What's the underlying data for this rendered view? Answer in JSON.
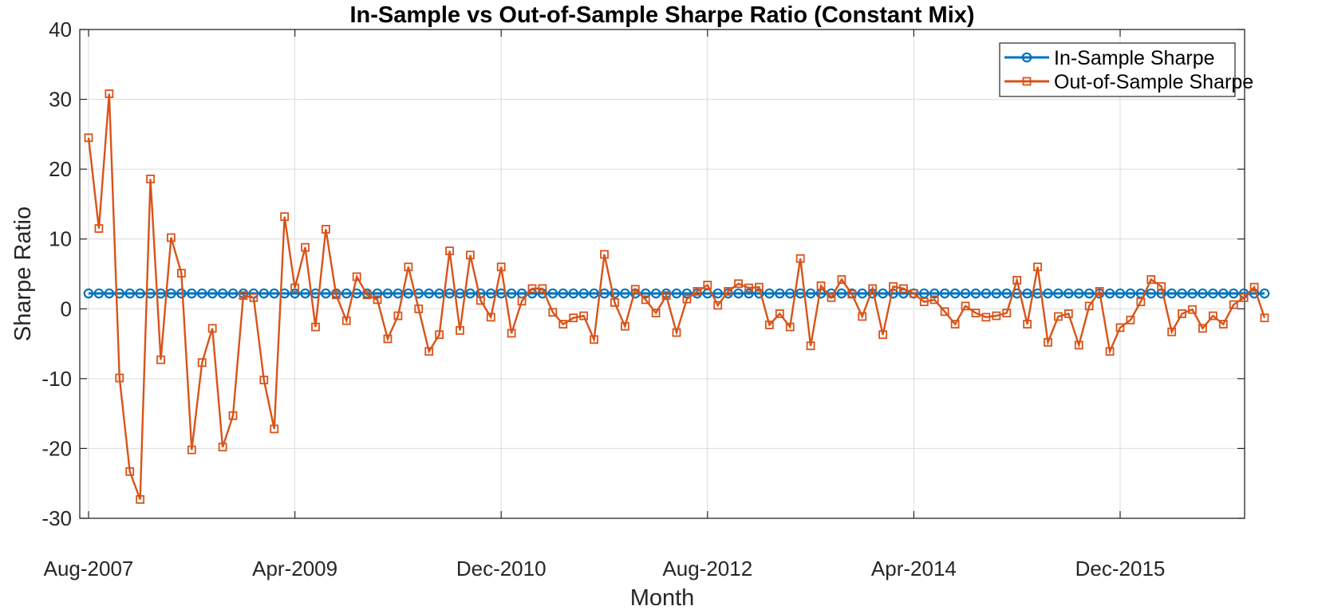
{
  "chart_data": {
    "type": "line",
    "title": "In-Sample vs Out-of-Sample Sharpe Ratio (Constant Mix)",
    "xlabel": "Month",
    "ylabel": "Sharpe Ratio",
    "ylim": [
      -30,
      40
    ],
    "y_ticks": [
      -30,
      -20,
      -10,
      0,
      10,
      20,
      30,
      40
    ],
    "x_ticks": [
      {
        "label": "Aug-2007",
        "index": 0
      },
      {
        "label": "Apr-2009",
        "index": 20
      },
      {
        "label": "Dec-2010",
        "index": 40
      },
      {
        "label": "Aug-2012",
        "index": 60
      },
      {
        "label": "Apr-2014",
        "index": 80
      },
      {
        "label": "Dec-2015",
        "index": 100
      }
    ],
    "x_start": "Aug-2007",
    "x_end": "Aug-2017",
    "grid": true,
    "legend_position": "top-right",
    "series": [
      {
        "name": "In-Sample Sharpe",
        "color": "#0072BD",
        "marker": "circle",
        "constant_value": 2.2
      },
      {
        "name": "Out-of-Sample Sharpe",
        "color": "#D95319",
        "marker": "square",
        "values": [
          24.5,
          11.5,
          30.8,
          -9.9,
          -23.3,
          -27.3,
          18.6,
          -7.3,
          10.2,
          5.1,
          -20.2,
          -7.7,
          -2.8,
          -19.8,
          -15.3,
          1.9,
          1.6,
          -10.2,
          -17.2,
          13.2,
          3.0,
          8.8,
          -2.6,
          11.4,
          2.0,
          -1.7,
          4.6,
          2.0,
          1.3,
          -4.3,
          -1.0,
          6.0,
          0.0,
          -6.1,
          -3.7,
          8.3,
          -3.1,
          7.7,
          1.2,
          -1.2,
          6.0,
          -3.5,
          1.1,
          2.9,
          2.9,
          -0.5,
          -2.2,
          -1.3,
          -1.0,
          -4.4,
          7.8,
          0.9,
          -2.5,
          2.8,
          1.3,
          -0.6,
          1.9,
          -3.4,
          1.4,
          2.5,
          3.4,
          0.5,
          2.5,
          3.6,
          3.0,
          3.1,
          -2.3,
          -0.7,
          -2.6,
          7.2,
          -5.3,
          3.3,
          1.6,
          4.2,
          2.1,
          -1.1,
          2.9,
          -3.7,
          3.2,
          2.9,
          2.2,
          1.0,
          1.3,
          -0.4,
          -2.2,
          0.4,
          -0.6,
          -1.2,
          -1.0,
          -0.6,
          4.1,
          -2.2,
          6.0,
          -4.8,
          -1.1,
          -0.7,
          -5.2,
          0.4,
          2.5,
          -6.1,
          -2.7,
          -1.6,
          1.0,
          4.2,
          3.2,
          -3.3,
          -0.7,
          -0.1,
          -2.8,
          -1.0,
          -2.2,
          0.6,
          1.6,
          3.1,
          -1.3
        ]
      }
    ]
  }
}
